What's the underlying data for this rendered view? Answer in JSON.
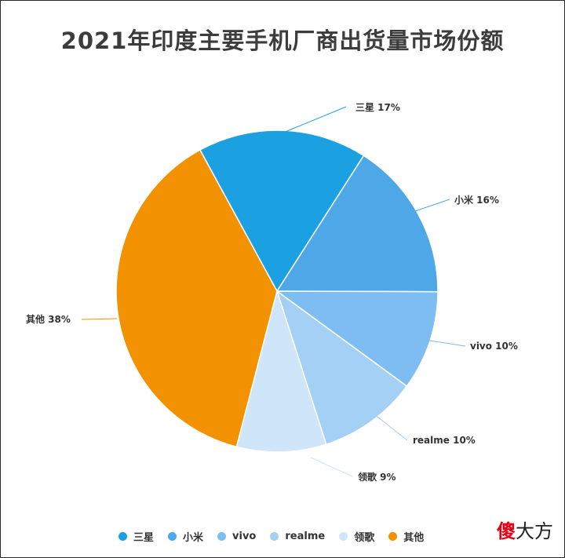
{
  "chart_data": {
    "type": "pie",
    "title": "2021年印度主要手机厂商出货量市场份额",
    "slices": [
      {
        "name": "三星",
        "value": 17,
        "label": "三星 17%",
        "color": "#1ba1e2"
      },
      {
        "name": "小米",
        "value": 16,
        "label": "小米 16%",
        "color": "#4ea8e8"
      },
      {
        "name": "vivo",
        "value": 10,
        "label": "vivo 10%",
        "color": "#7dbdf1"
      },
      {
        "name": "realme",
        "value": 10,
        "label": "realme 10%",
        "color": "#a4d0f5"
      },
      {
        "name": "领歌",
        "value": 9,
        "label": "领歌 9%",
        "color": "#cfe5fa"
      },
      {
        "name": "其他",
        "value": 38,
        "label": "其他 38%",
        "color": "#f39200"
      }
    ],
    "legend_position": "bottom"
  },
  "legend": {
    "items": [
      "三星",
      "小米",
      "vivo",
      "realme",
      "领歌",
      "其他"
    ]
  },
  "watermark": {
    "part1": "傻",
    "part2": "大方"
  }
}
